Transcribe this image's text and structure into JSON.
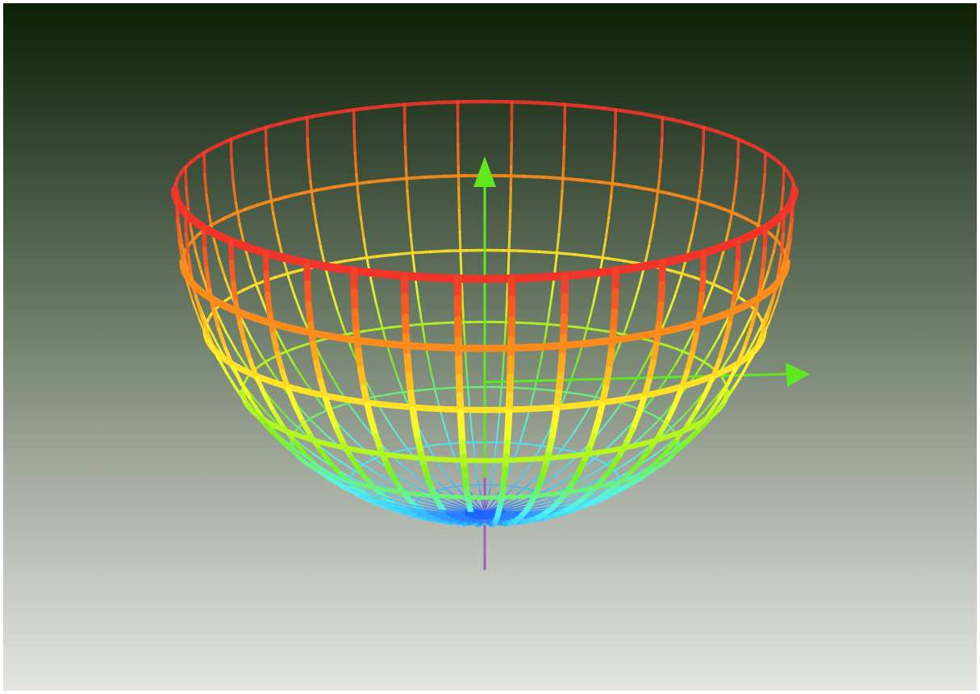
{
  "scene": {
    "shape": "hemisphere-bowl",
    "render_style": "wireframe",
    "color_scale": [
      "#1e55ff",
      "#38c8ff",
      "#55f5f0",
      "#7df018",
      "#ffff2a",
      "#ff9a18",
      "#f0342a"
    ],
    "background": {
      "top": "#0e2004",
      "bottom": "#e4e6e2"
    },
    "axes": [
      {
        "id": "axis-up",
        "color": "#60e820",
        "has_arrow": true
      },
      {
        "id": "axis-right",
        "color": "#60e820",
        "has_arrow": true
      },
      {
        "id": "axis-down",
        "color": "#9a60c0",
        "has_arrow": false
      }
    ]
  }
}
